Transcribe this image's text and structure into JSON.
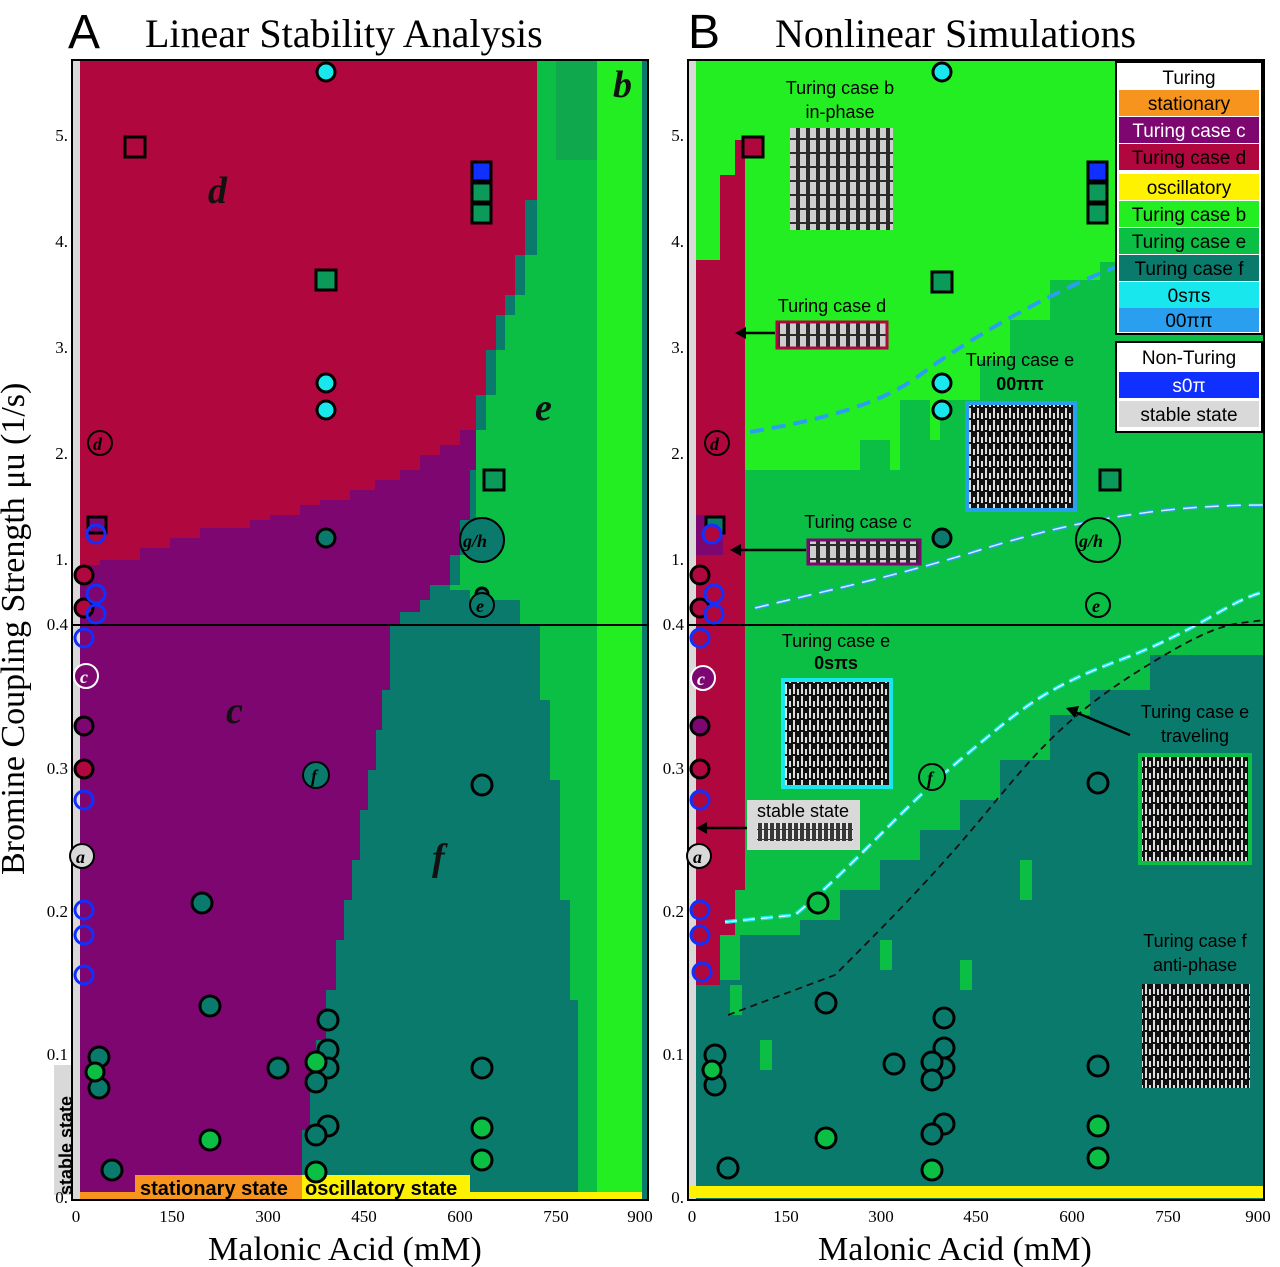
{
  "colors": {
    "crimson": "#b0073e",
    "purple": "#7d0670",
    "green_light": "#22ee22",
    "green_mid": "#0bbf45",
    "green_dark": "#0b9a5a",
    "teal": "#0a7a6d",
    "gray": "#d9d9d9",
    "orange": "#f7941d",
    "yellow": "#fff200",
    "cyan": "#18e8ee",
    "blue_dash": "#2b9fef",
    "blue": "#1030ff"
  },
  "panelA": {
    "letter": "A",
    "title": "Linear Stability Analysis",
    "regions": {
      "b": "b",
      "d": "d",
      "e": "e",
      "c": "c",
      "f": "f"
    },
    "bottom_labels": {
      "stable": "stable state",
      "stationary": "stationary state",
      "oscillatory": "oscillatory state"
    }
  },
  "panelB": {
    "letter": "B",
    "title": "Nonlinear Simulations",
    "insets": {
      "b_line1": "Turing case b",
      "b_line2": "in-phase",
      "d": "Turing case d",
      "c": "Turing case c",
      "e00_line1": "Turing case e",
      "e00_line2": "00ππ",
      "e0s_line1": "Turing case e",
      "e0s_line2": "0sπs",
      "etr_line1": "Turing case e",
      "etr_line2": "traveling",
      "f_line1": "Turing case f",
      "f_line2": "anti-phase",
      "stable": "stable state"
    }
  },
  "legend": {
    "header1": "Turing",
    "items1": [
      "stationary",
      "Turing case c",
      "Turing case d",
      "oscillatory",
      "Turing case b",
      "Turing case e",
      "Turing case f",
      "0sπs",
      "00ππ"
    ],
    "header2": "Non-Turing",
    "items2": [
      "s0π",
      "stable state"
    ]
  },
  "point_labels": [
    "d",
    "c",
    "a",
    "f",
    "g/h",
    "e"
  ],
  "chart_data": {
    "type": "heatmap",
    "xlabel": "Malonic Acid (mM)",
    "ylabel": "Bromine Coupling Strength μu (1/s)",
    "x_ticks": [
      "0",
      "150",
      "300",
      "450",
      "600",
      "750",
      "900"
    ],
    "y_ticks_lower": [
      "0.",
      "0.1",
      "0.2",
      "0.3",
      "0.4"
    ],
    "y_ticks_upper": [
      "0.4",
      "1.",
      "2.",
      "3.",
      "4.",
      "5."
    ],
    "xlim": [
      0,
      900
    ],
    "scale_note": "y axis split at 0.4",
    "boundaryA_cd_upper": [
      [
        0,
        1.3
      ],
      [
        180,
        1.2
      ],
      [
        330,
        1.65
      ],
      [
        630,
        2.25
      ]
    ],
    "boundaryA_upper_de": [
      [
        630,
        2.25
      ],
      [
        720,
        4.9
      ],
      [
        720,
        5.7
      ]
    ],
    "boundaryA_cf": [
      [
        360,
        0.0
      ],
      [
        380,
        0.13
      ],
      [
        400,
        0.26
      ],
      [
        420,
        0.34
      ],
      [
        450,
        0.4
      ]
    ],
    "dashed_curves_B": [
      {
        "name": "00ππ",
        "points": [
          [
            95,
            2.25
          ],
          [
            300,
            2.6
          ],
          [
            400,
            3.2
          ],
          [
            700,
            3.8
          ]
        ]
      },
      {
        "name": "0sπs",
        "points": [
          [
            95,
            0.54
          ],
          [
            200,
            0.65
          ],
          [
            400,
            0.85
          ],
          [
            600,
            1.05
          ],
          [
            900,
            1.45
          ]
        ]
      },
      {
        "name": "lower",
        "points": [
          [
            55,
            0.19
          ],
          [
            160,
            0.195
          ],
          [
            300,
            0.27
          ],
          [
            550,
            0.35
          ],
          [
            900,
            0.46
          ]
        ]
      },
      {
        "name": "black",
        "points": [
          [
            60,
            0.125
          ],
          [
            220,
            0.155
          ],
          [
            350,
            0.22
          ],
          [
            600,
            0.33
          ],
          [
            900,
            0.4
          ]
        ]
      }
    ],
    "points_MA": [
      20,
      40,
      60,
      200,
      215,
      320,
      380,
      400,
      640,
      660
    ]
  }
}
